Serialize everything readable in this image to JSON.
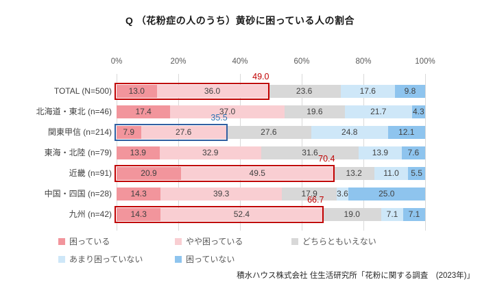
{
  "title": "Q （花粉症の人のうち）黄砂に困っている人の割合",
  "source": "積水ハウス株式会社 住生活研究所「花粉に関する調査　(2023年)」",
  "colors": {
    "highlight_red": "#C00000",
    "highlight_blue_border": "#2F5FA1",
    "highlight_blue_label": "#2E74B5",
    "gridline": "#D9D9D9"
  },
  "chart_data": {
    "type": "bar",
    "orientation": "horizontal-stacked",
    "title": "Q （花粉症の人のうち）黄砂に困っている人の割合",
    "xlim": [
      0,
      100
    ],
    "x_tick_labels": [
      "0%",
      "20%",
      "40%",
      "60%",
      "80%",
      "100%"
    ],
    "x_tick_values": [
      0,
      20,
      40,
      60,
      80,
      100
    ],
    "grid": true,
    "legend_position": "bottom",
    "categories": [
      "TOTAL (N=500)",
      "北海道・東北 (n=46)",
      "関東甲信 (n=214)",
      "東海・北陸 (n=79)",
      "近畿 (n=91)",
      "中国・四国 (n=28)",
      "九州 (n=42)"
    ],
    "series": [
      {
        "name": "困っている",
        "color": "#F2959C",
        "values": [
          13.0,
          17.4,
          7.9,
          13.9,
          20.9,
          14.3,
          14.3
        ]
      },
      {
        "name": "やや困っている",
        "color": "#F9CED2",
        "values": [
          36.0,
          37.0,
          27.6,
          32.9,
          49.5,
          39.3,
          52.4
        ]
      },
      {
        "name": "どちらともいえない",
        "color": "#D8D8D8",
        "values": [
          23.6,
          19.6,
          27.6,
          31.6,
          13.2,
          17.9,
          19.0
        ]
      },
      {
        "name": "あまり困っていない",
        "color": "#CEE7F8",
        "values": [
          17.6,
          21.7,
          24.8,
          13.9,
          11.0,
          3.6,
          7.1
        ]
      },
      {
        "name": "困っていない",
        "color": "#8EC4EE",
        "values": [
          9.8,
          4.3,
          12.1,
          7.6,
          5.5,
          25.0,
          7.1
        ]
      }
    ],
    "highlights": [
      {
        "row": 0,
        "span_series": 2,
        "total_label": "49.0",
        "box_color": "#C00000",
        "label_color": "#C00000"
      },
      {
        "row": 2,
        "span_series": 2,
        "total_label": "35.5",
        "box_color": "#2F5FA1",
        "label_color": "#2E74B5"
      },
      {
        "row": 4,
        "span_series": 2,
        "total_label": "70.4",
        "box_color": "#C00000",
        "label_color": "#C00000"
      },
      {
        "row": 6,
        "span_series": 2,
        "total_label": "66.7",
        "box_color": "#C00000",
        "label_color": "#C00000"
      }
    ]
  },
  "legend": {
    "rows": [
      [
        "困っている",
        "やや困っている",
        "どちらともいえない"
      ],
      [
        "あまり困っていない",
        "困っていない"
      ]
    ]
  }
}
